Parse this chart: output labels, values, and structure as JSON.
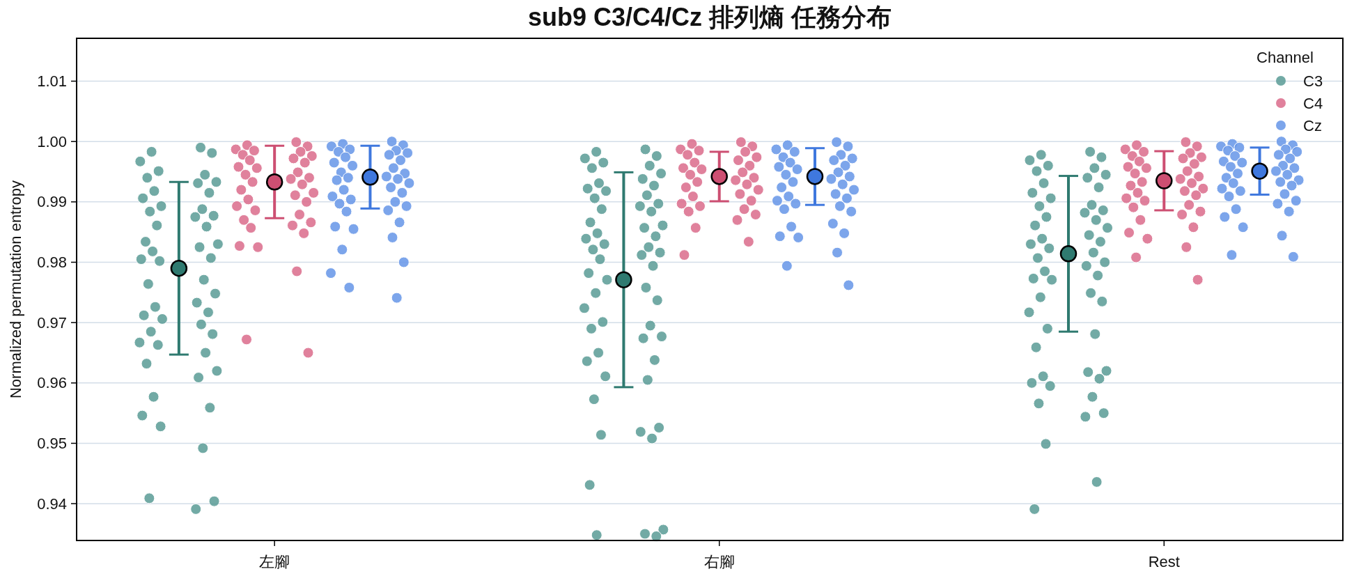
{
  "chart_data": {
    "type": "scatter",
    "title": "sub9 C3/C4/Cz 排列熵 任務分布",
    "ylabel": "Normalized permutation entropy",
    "legend_title": "Channel",
    "legend": "top right",
    "grid": "y",
    "marker": "circle",
    "categories": [
      "左腳",
      "右腳",
      "Rest"
    ],
    "ylim": [
      0.9339,
      1.0171
    ],
    "yticks": [
      0.94,
      0.95,
      0.96,
      0.97,
      0.98,
      0.99,
      {
        "value": 1.0,
        "label": "1.00"
      },
      1.01
    ],
    "series": [
      {
        "name": "C3",
        "color": "#5f9e98",
        "x": [
          "左腳",
          "左腳",
          "左腳",
          "左腳",
          "左腳",
          "左腳",
          "左腳",
          "左腳",
          "左腳",
          "左腳",
          "左腳",
          "左腳",
          "左腳",
          "左腳",
          "左腳",
          "左腳",
          "左腳",
          "左腳",
          "左腳",
          "左腳",
          "左腳",
          "左腳",
          "左腳",
          "左腳",
          "左腳",
          "左腳",
          "左腳",
          "左腳",
          "左腳",
          "左腳",
          "左腳",
          "左腳",
          "左腳",
          "左腳",
          "左腳",
          "左腳",
          "左腳",
          "左腳",
          "左腳",
          "左腳",
          "左腳",
          "左腳",
          "左腳",
          "左腳",
          "左腳",
          "左腳",
          "左腳",
          "左腳",
          "左腳",
          "左腳",
          "左腳",
          "右腳",
          "右腳",
          "右腳",
          "右腳",
          "右腳",
          "右腳",
          "右腳",
          "右腳",
          "右腳",
          "右腳",
          "右腳",
          "右腳",
          "右腳",
          "右腳",
          "右腳",
          "右腳",
          "右腳",
          "右腳",
          "右腳",
          "右腳",
          "右腳",
          "右腳",
          "右腳",
          "右腳",
          "右腳",
          "右腳",
          "右腳",
          "右腳",
          "右腳",
          "右腳",
          "右腳",
          "右腳",
          "右腳",
          "右腳",
          "右腳",
          "右腳",
          "右腳",
          "右腳",
          "右腳",
          "右腳",
          "右腳",
          "右腳",
          "右腳",
          "右腳",
          "右腳",
          "右腳",
          "右腳",
          "右腳",
          "右腳",
          "右腳",
          "右腳",
          "右腳",
          "右腳",
          "右腳",
          "右腳",
          "右腳",
          "右腳",
          "右腳",
          "Rest",
          "Rest",
          "Rest",
          "Rest",
          "Rest",
          "Rest",
          "Rest",
          "Rest",
          "Rest",
          "Rest",
          "Rest",
          "Rest",
          "Rest",
          "Rest",
          "Rest",
          "Rest",
          "Rest",
          "Rest",
          "Rest",
          "Rest",
          "Rest",
          "Rest",
          "Rest",
          "Rest",
          "Rest",
          "Rest",
          "Rest",
          "Rest",
          "Rest",
          "Rest",
          "Rest",
          "Rest",
          "Rest",
          "Rest",
          "Rest",
          "Rest",
          "Rest",
          "Rest",
          "Rest",
          "Rest",
          "Rest",
          "Rest",
          "Rest",
          "Rest",
          "Rest",
          "Rest",
          "Rest",
          "Rest",
          "Rest",
          "Rest",
          "Rest",
          "Rest",
          "Rest",
          "Rest"
        ],
        "values": [
          0.999,
          0.9983,
          0.9981,
          0.9967,
          0.9951,
          0.9945,
          0.994,
          0.9933,
          0.9931,
          0.9918,
          0.9915,
          0.9906,
          0.9893,
          0.9888,
          0.9884,
          0.9877,
          0.9875,
          0.9861,
          0.9859,
          0.9834,
          0.983,
          0.9825,
          0.9818,
          0.9807,
          0.9805,
          0.9802,
          0.9771,
          0.9764,
          0.9748,
          0.9733,
          0.9726,
          0.9717,
          0.9712,
          0.9706,
          0.9697,
          0.9685,
          0.9681,
          0.9667,
          0.9663,
          0.965,
          0.9632,
          0.962,
          0.9609,
          0.9577,
          0.9559,
          0.9546,
          0.9528,
          0.9492,
          0.9409,
          0.9404,
          0.9391,
          0.9987,
          0.9983,
          0.9976,
          0.9972,
          0.9965,
          0.996,
          0.9956,
          0.9947,
          0.9938,
          0.9931,
          0.9927,
          0.9922,
          0.9918,
          0.9911,
          0.9906,
          0.9897,
          0.9893,
          0.9888,
          0.9884,
          0.9866,
          0.9861,
          0.9857,
          0.9848,
          0.9843,
          0.9839,
          0.983,
          0.9825,
          0.9821,
          0.9816,
          0.9812,
          0.9805,
          0.9794,
          0.9782,
          0.9771,
          0.9758,
          0.9749,
          0.9737,
          0.9724,
          0.9701,
          0.9695,
          0.969,
          0.9677,
          0.9674,
          0.965,
          0.9638,
          0.9636,
          0.9611,
          0.9605,
          0.9573,
          0.9526,
          0.9519,
          0.9514,
          0.9508,
          0.9431,
          0.9357,
          0.935,
          0.9348,
          0.9346,
          0.9983,
          0.9978,
          0.9974,
          0.9969,
          0.996,
          0.9956,
          0.9951,
          0.9945,
          0.994,
          0.9931,
          0.9924,
          0.9915,
          0.9906,
          0.9895,
          0.9893,
          0.9886,
          0.9882,
          0.9875,
          0.987,
          0.9861,
          0.9857,
          0.9845,
          0.9839,
          0.9834,
          0.983,
          0.9823,
          0.9816,
          0.9807,
          0.98,
          0.9794,
          0.9785,
          0.9778,
          0.9773,
          0.9771,
          0.9749,
          0.9742,
          0.9735,
          0.9717,
          0.969,
          0.9681,
          0.9659,
          0.962,
          0.9618,
          0.9611,
          0.9607,
          0.96,
          0.9595,
          0.9577,
          0.9566,
          0.955,
          0.9544,
          0.9499,
          0.9436,
          0.9391
        ]
      },
      {
        "name": "C4",
        "color": "#dc6f8e",
        "x": [
          "左腳",
          "左腳",
          "左腳",
          "左腳",
          "左腳",
          "左腳",
          "左腳",
          "左腳",
          "左腳",
          "左腳",
          "左腳",
          "左腳",
          "左腳",
          "左腳",
          "左腳",
          "左腳",
          "左腳",
          "左腳",
          "左腳",
          "左腳",
          "左腳",
          "左腳",
          "左腳",
          "左腳",
          "左腳",
          "左腳",
          "左腳",
          "左腳",
          "左腳",
          "左腳",
          "左腳",
          "左腳",
          "左腳",
          "左腳",
          "左腳",
          "左腳",
          "左腳",
          "右腳",
          "右腳",
          "右腳",
          "右腳",
          "右腳",
          "右腳",
          "右腳",
          "右腳",
          "右腳",
          "右腳",
          "右腳",
          "右腳",
          "右腳",
          "右腳",
          "右腳",
          "右腳",
          "右腳",
          "右腳",
          "右腳",
          "右腳",
          "右腳",
          "右腳",
          "右腳",
          "右腳",
          "右腳",
          "右腳",
          "右腳",
          "右腳",
          "右腳",
          "右腳",
          "右腳",
          "右腳",
          "右腳",
          "Rest",
          "Rest",
          "Rest",
          "Rest",
          "Rest",
          "Rest",
          "Rest",
          "Rest",
          "Rest",
          "Rest",
          "Rest",
          "Rest",
          "Rest",
          "Rest",
          "Rest",
          "Rest",
          "Rest",
          "Rest",
          "Rest",
          "Rest",
          "Rest",
          "Rest",
          "Rest",
          "Rest",
          "Rest",
          "Rest",
          "Rest",
          "Rest",
          "Rest",
          "Rest",
          "Rest",
          "Rest",
          "Rest",
          "Rest",
          "Rest",
          "Rest",
          "Rest"
        ],
        "values": [
          0.9999,
          0.9994,
          0.9992,
          0.9987,
          0.9985,
          0.9983,
          0.9978,
          0.9976,
          0.9972,
          0.9969,
          0.9965,
          0.9958,
          0.9956,
          0.9949,
          0.9945,
          0.994,
          0.9938,
          0.9933,
          0.9929,
          0.992,
          0.9915,
          0.9911,
          0.9904,
          0.99,
          0.9893,
          0.9886,
          0.9879,
          0.987,
          0.9866,
          0.9861,
          0.9857,
          0.9848,
          0.9827,
          0.9825,
          0.9785,
          0.9672,
          0.965,
          0.9999,
          0.9996,
          0.9992,
          0.9987,
          0.9985,
          0.9983,
          0.9978,
          0.9974,
          0.9969,
          0.9965,
          0.996,
          0.9956,
          0.9954,
          0.9949,
          0.9945,
          0.994,
          0.9936,
          0.9933,
          0.9929,
          0.9924,
          0.992,
          0.9913,
          0.9909,
          0.9902,
          0.9897,
          0.9893,
          0.9888,
          0.9884,
          0.9879,
          0.987,
          0.9857,
          0.9834,
          0.9812,
          0.9999,
          0.9994,
          0.9992,
          0.9987,
          0.9983,
          0.9981,
          0.9976,
          0.9974,
          0.9972,
          0.9967,
          0.9963,
          0.9958,
          0.9956,
          0.9951,
          0.9947,
          0.9942,
          0.9938,
          0.9933,
          0.9931,
          0.9927,
          0.9922,
          0.9918,
          0.9915,
          0.9911,
          0.9906,
          0.9902,
          0.9895,
          0.9891,
          0.9884,
          0.9879,
          0.987,
          0.9858,
          0.9849,
          0.9839,
          0.9825,
          0.9808,
          0.9771
        ]
      },
      {
        "name": "Cz",
        "color": "#6a98e8",
        "x": [
          "左腳",
          "左腳",
          "左腳",
          "左腳",
          "左腳",
          "左腳",
          "左腳",
          "左腳",
          "左腳",
          "左腳",
          "左腳",
          "左腳",
          "左腳",
          "左腳",
          "左腳",
          "左腳",
          "左腳",
          "左腳",
          "左腳",
          "左腳",
          "左腳",
          "左腳",
          "左腳",
          "左腳",
          "左腳",
          "左腳",
          "左腳",
          "左腳",
          "左腳",
          "左腳",
          "左腳",
          "左腳",
          "左腳",
          "左腳",
          "左腳",
          "左腳",
          "左腳",
          "左腳",
          "左腳",
          "左腳",
          "右腳",
          "右腳",
          "右腳",
          "右腳",
          "右腳",
          "右腳",
          "右腳",
          "右腳",
          "右腳",
          "右腳",
          "右腳",
          "右腳",
          "右腳",
          "右腳",
          "右腳",
          "右腳",
          "右腳",
          "右腳",
          "右腳",
          "右腳",
          "右腳",
          "右腳",
          "右腳",
          "右腳",
          "右腳",
          "右腳",
          "右腳",
          "右腳",
          "右腳",
          "右腳",
          "右腳",
          "右腳",
          "右腳",
          "右腳",
          "右腳",
          "右腳",
          "右腳",
          "Rest",
          "Rest",
          "Rest",
          "Rest",
          "Rest",
          "Rest",
          "Rest",
          "Rest",
          "Rest",
          "Rest",
          "Rest",
          "Rest",
          "Rest",
          "Rest",
          "Rest",
          "Rest",
          "Rest",
          "Rest",
          "Rest",
          "Rest",
          "Rest",
          "Rest",
          "Rest",
          "Rest",
          "Rest",
          "Rest",
          "Rest",
          "Rest",
          "Rest",
          "Rest",
          "Rest",
          "Rest",
          "Rest",
          "Rest",
          "Rest",
          "Rest",
          "Rest"
        ],
        "values": [
          1.0,
          0.9996,
          0.9994,
          0.9992,
          0.9987,
          0.9985,
          0.9983,
          0.9981,
          0.9978,
          0.9974,
          0.9969,
          0.9965,
          0.996,
          0.9956,
          0.9949,
          0.9947,
          0.9942,
          0.994,
          0.9938,
          0.9936,
          0.9931,
          0.9924,
          0.992,
          0.9915,
          0.9909,
          0.9904,
          0.99,
          0.9897,
          0.9893,
          0.9886,
          0.9884,
          0.9866,
          0.9859,
          0.9855,
          0.9841,
          0.9821,
          0.98,
          0.9782,
          0.9758,
          0.9741,
          0.9999,
          0.9994,
          0.9992,
          0.9987,
          0.9983,
          0.9978,
          0.9974,
          0.9972,
          0.9969,
          0.9965,
          0.996,
          0.9958,
          0.9954,
          0.9949,
          0.9945,
          0.9942,
          0.9938,
          0.9933,
          0.9929,
          0.9924,
          0.992,
          0.9913,
          0.9909,
          0.9906,
          0.9902,
          0.9897,
          0.9893,
          0.9888,
          0.9884,
          0.9864,
          0.9859,
          0.9848,
          0.9843,
          0.9841,
          0.9816,
          0.9794,
          0.9762,
          1.0,
          0.9996,
          0.9994,
          0.9992,
          0.999,
          0.9987,
          0.9985,
          0.9983,
          0.9978,
          0.9976,
          0.9972,
          0.9967,
          0.9965,
          0.996,
          0.9958,
          0.9956,
          0.9951,
          0.9947,
          0.9945,
          0.994,
          0.9936,
          0.9933,
          0.9931,
          0.9927,
          0.9922,
          0.9918,
          0.9913,
          0.9909,
          0.9902,
          0.9897,
          0.9888,
          0.9884,
          0.9875,
          0.9858,
          0.9844,
          0.9812,
          0.9809
        ]
      },
      {
        "color": "#2f7a70",
        "x": [
          "左腳",
          "右腳",
          "Rest"
        ],
        "values": [
          0.979,
          0.9771,
          0.9814
        ],
        "errors": [
          0.0143,
          0.0178,
          0.0129
        ]
      },
      {
        "color": "#cd4f72",
        "x": [
          "左腳",
          "右腳",
          "Rest"
        ],
        "values": [
          0.9933,
          0.9942,
          0.9935
        ],
        "errors": [
          0.006,
          0.0041,
          0.0049
        ]
      },
      {
        "color": "#3f78de",
        "x": [
          "左腳",
          "右腳",
          "Rest"
        ],
        "values": [
          0.9941,
          0.9942,
          0.9951
        ],
        "errors": [
          0.0052,
          0.0047,
          0.0039
        ]
      }
    ]
  }
}
